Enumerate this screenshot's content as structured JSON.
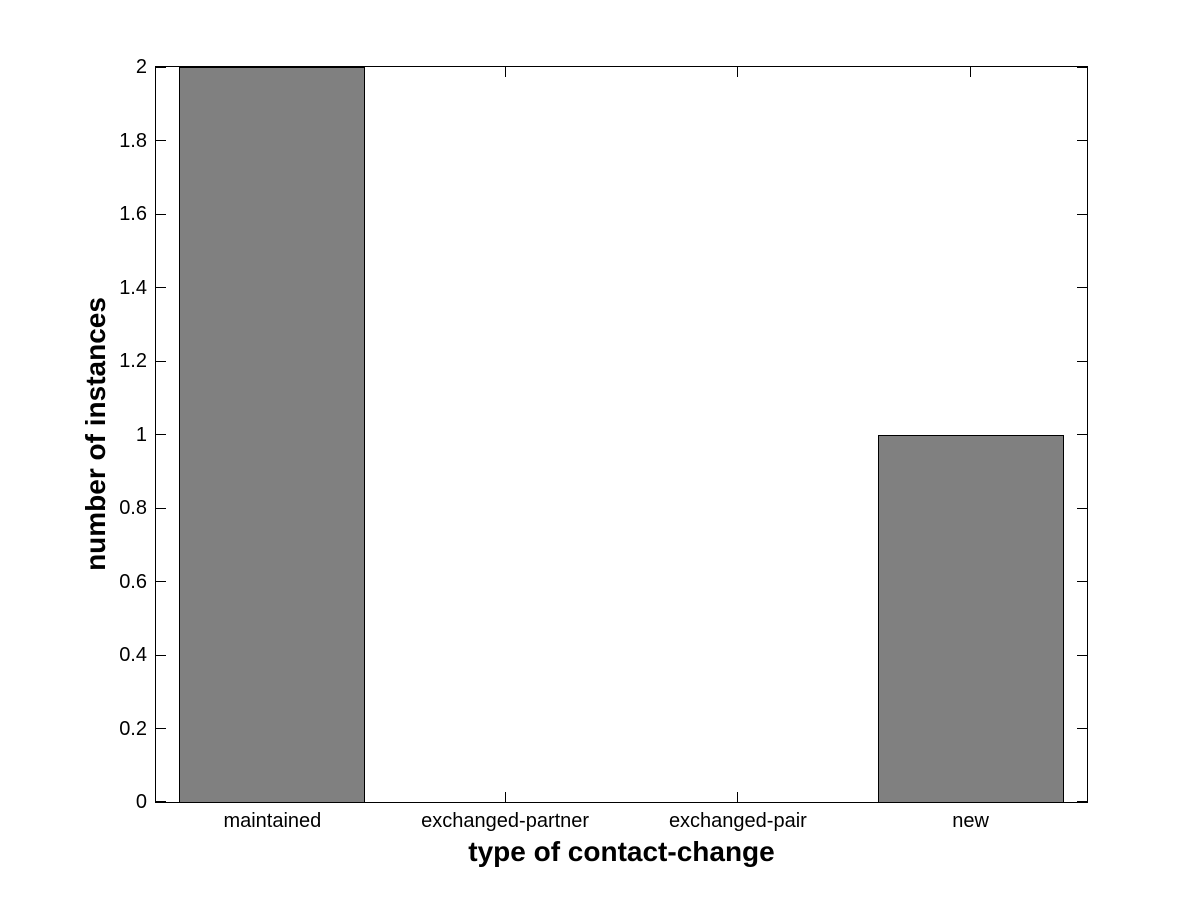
{
  "chart_data": {
    "type": "bar",
    "title": "",
    "xlabel": "type of contact-change",
    "ylabel": "number of instances",
    "categories": [
      "maintained",
      "exchanged-partner",
      "exchanged-pair",
      "new"
    ],
    "values": [
      2,
      0,
      0,
      1
    ],
    "ylim": [
      0,
      2
    ],
    "yticks": {
      "values": [
        0,
        0.2,
        0.4,
        0.6,
        0.8,
        1,
        1.2,
        1.4,
        1.6,
        1.8,
        2
      ],
      "labels": [
        "0",
        "0.2",
        "0.4",
        "0.6",
        "0.8",
        "1",
        "1.2",
        "1.4",
        "1.6",
        "1.8",
        "2"
      ]
    },
    "grid": false,
    "legend": null,
    "bar_width_fraction": 0.8,
    "colors": {
      "bar_fill": "#808080",
      "bar_edge": "#000000",
      "axis": "#000000",
      "background": "#ffffff",
      "text": "#000000"
    }
  }
}
